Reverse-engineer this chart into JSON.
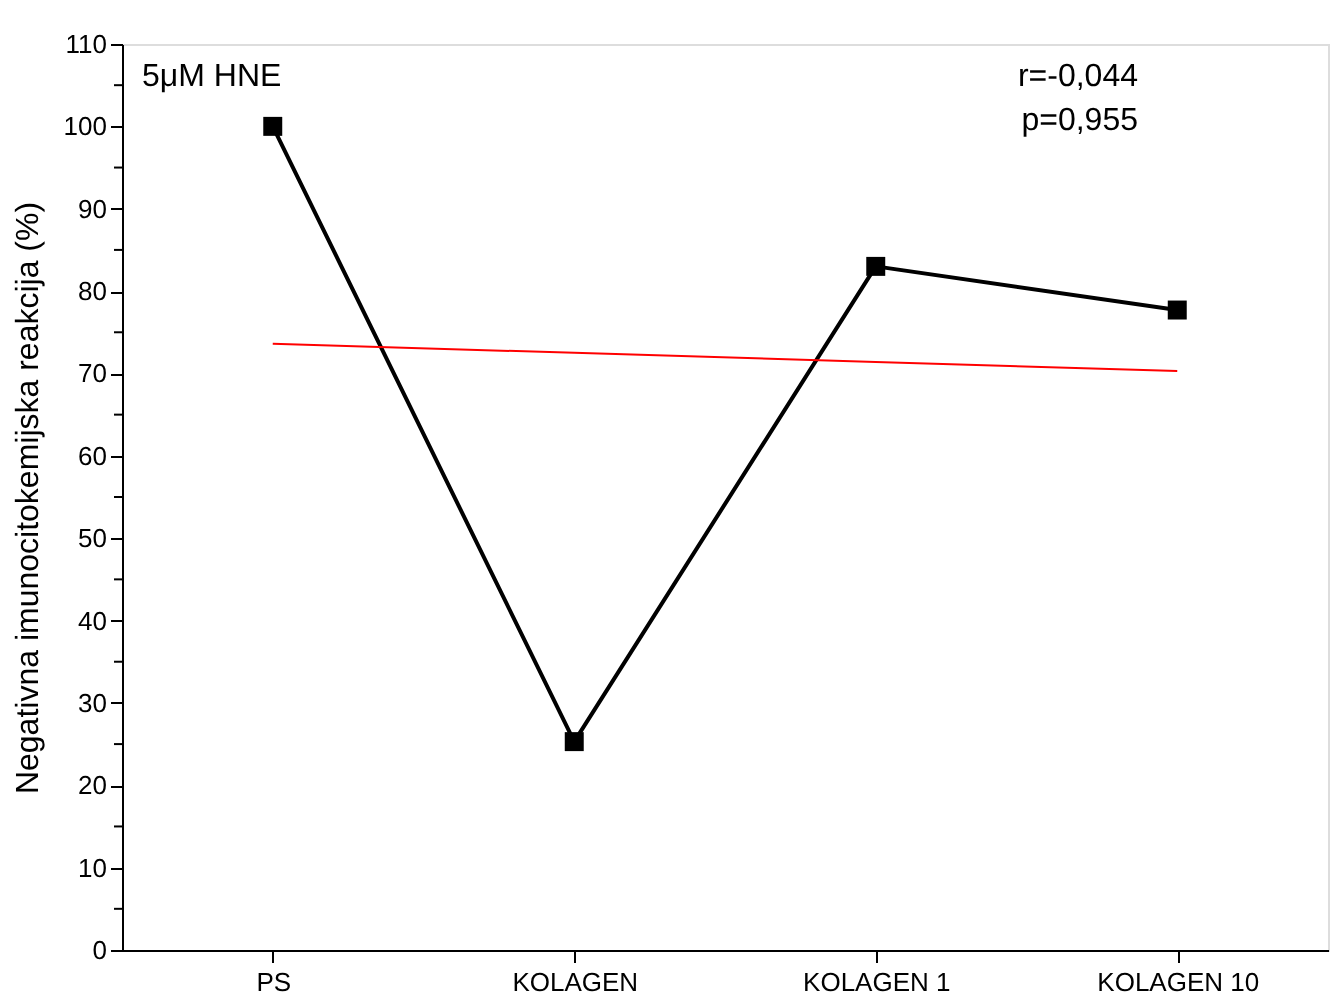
{
  "chart_data": {
    "type": "line",
    "categories": [
      "PS",
      "KOLAGEN",
      "KOLAGEN 1",
      "KOLAGEN 10"
    ],
    "series": [
      {
        "type": "line",
        "color": "#000000",
        "marker": "square",
        "values": [
          100,
          25.3,
          83.0,
          77.7
        ]
      },
      {
        "type": "line",
        "color": "#ff0000",
        "marker": "none",
        "values": [
          73.6,
          72.5,
          71.4,
          70.3
        ]
      }
    ],
    "ylabel": "Negativna imunocitokemijska reakcija (%)",
    "ylim": [
      0,
      110
    ],
    "yticks": [
      0,
      {
        "value": 5,
        "label": null
      },
      10,
      {
        "value": 15,
        "label": null
      },
      20,
      {
        "value": 25,
        "label": null
      },
      30,
      {
        "value": 35,
        "label": null
      },
      40,
      {
        "value": 45,
        "label": null
      },
      50,
      {
        "value": 55,
        "label": null
      },
      60,
      {
        "value": 65,
        "label": null
      },
      70,
      {
        "value": 75,
        "label": null
      },
      80,
      {
        "value": 85,
        "label": null
      },
      90,
      {
        "value": 95,
        "label": null
      },
      100,
      {
        "value": 105,
        "label": null
      },
      110
    ],
    "annotations": [
      "5μM HNE",
      "r=-0,044",
      "p=0,955"
    ],
    "grid": false
  }
}
